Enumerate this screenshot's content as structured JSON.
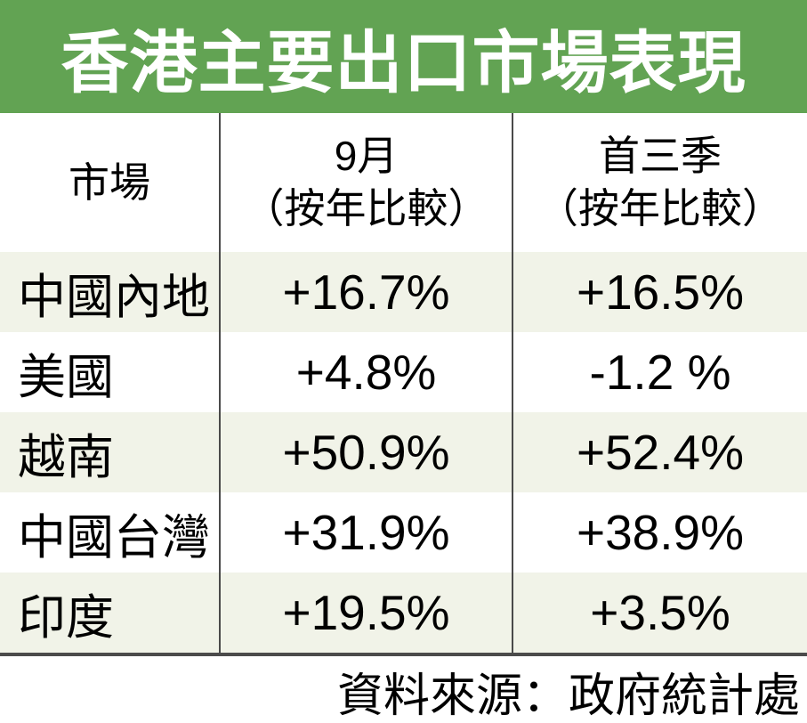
{
  "title": "香港主要出口市場表現",
  "table": {
    "header": {
      "market": "市場",
      "september_line1": "9月",
      "september_line2": "（按年比較）",
      "q3_line1": "首三季",
      "q3_line2": "（按年比較）"
    },
    "rows": [
      {
        "market": "中國內地",
        "sep_yoy": "+16.7%",
        "q3_yoy": "+16.5%"
      },
      {
        "market": "美國",
        "sep_yoy": "+4.8%",
        "q3_yoy": "-1.2 %"
      },
      {
        "market": "越南",
        "sep_yoy": "+50.9%",
        "q3_yoy": "+52.4%"
      },
      {
        "market": "中國台灣",
        "sep_yoy": "+31.9%",
        "q3_yoy": "+38.9%"
      },
      {
        "market": "印度",
        "sep_yoy": "+19.5%",
        "q3_yoy": "+3.5%"
      }
    ]
  },
  "source": "資料來源：政府統計處",
  "colors": {
    "title_bg": "#62a353",
    "row_alt_bg": "#f1f3e8",
    "divider": "#4a4a4a",
    "border_bottom": "#4b4b4b",
    "text": "#000000",
    "title_text": "#ffffff"
  },
  "chart_data": {
    "type": "table",
    "title": "香港主要出口市場表現",
    "columns": [
      "市場",
      "9月（按年比較）",
      "首三季（按年比較）"
    ],
    "rows": [
      [
        "中國內地",
        "+16.7%",
        "+16.5%"
      ],
      [
        "美國",
        "+4.8%",
        "-1.2 %"
      ],
      [
        "越南",
        "+50.9%",
        "+52.4%"
      ],
      [
        "中國台灣",
        "+31.9%",
        "+38.9%"
      ],
      [
        "印度",
        "+19.5%",
        "+3.5%"
      ]
    ],
    "values_numeric_pct": {
      "september_yoy": [
        16.7,
        4.8,
        50.9,
        31.9,
        19.5
      ],
      "first_three_quarters_yoy": [
        16.5,
        -1.2,
        52.4,
        38.9,
        3.5
      ]
    },
    "source": "資料來源：政府統計處",
    "legend_position": "none",
    "grid": false
  }
}
